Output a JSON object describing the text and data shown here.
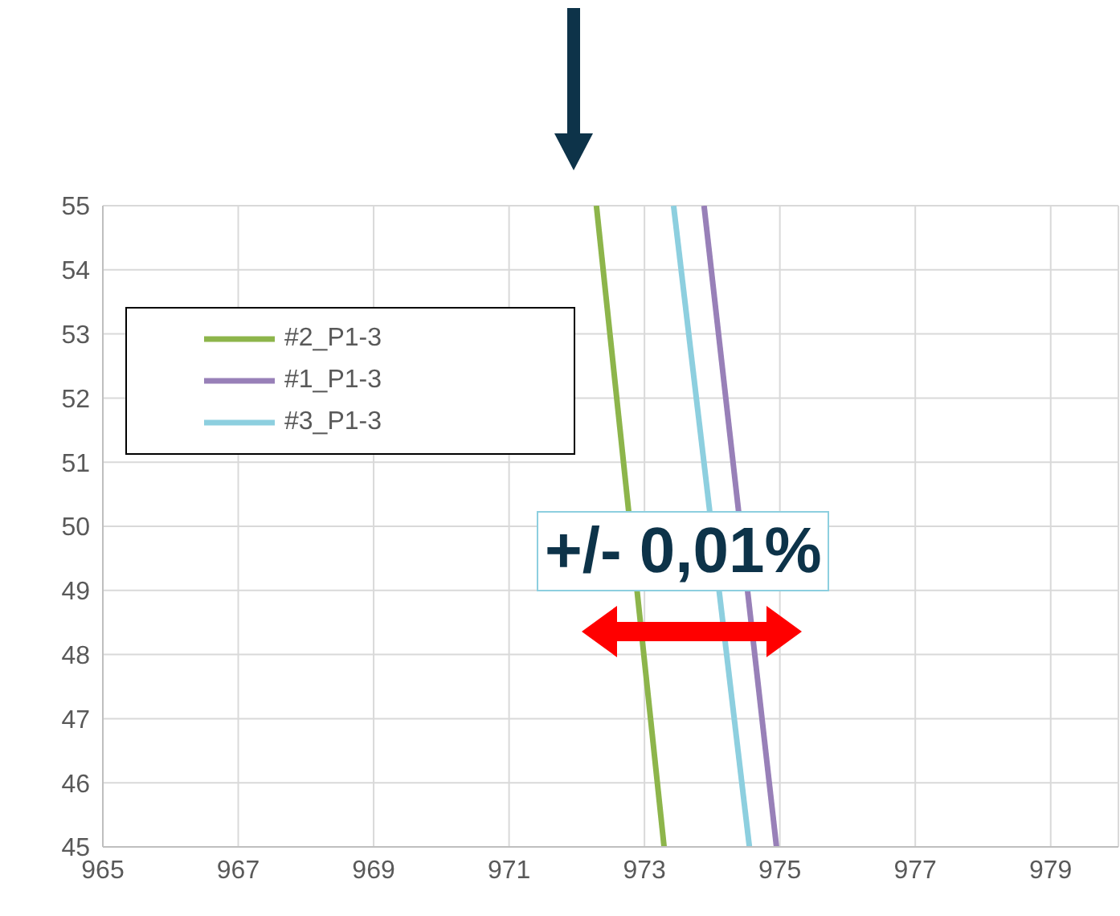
{
  "chart_data": {
    "type": "line",
    "annotations": [
      "+/- 0,01%"
    ],
    "series": [
      {
        "name": "#2_P1-3",
        "color": "#8db54b",
        "x": [
          972.29,
          973.29
        ],
        "values": [
          55,
          45
        ]
      },
      {
        "name": "#1_P1-3",
        "color": "#9880b8",
        "x": [
          973.88,
          974.95
        ],
        "values": [
          55,
          45
        ]
      },
      {
        "name": "#3_P1-3",
        "color": "#8dcfdf",
        "x": [
          973.43,
          974.55
        ],
        "values": [
          55,
          45
        ]
      }
    ],
    "xlim": [
      965,
      980
    ],
    "xticks": [
      965,
      967,
      969,
      971,
      973,
      975,
      977,
      979
    ],
    "ylim": [
      45,
      55
    ],
    "yticks": [
      45,
      46,
      47,
      48,
      49,
      50,
      51,
      52,
      53,
      54,
      55
    ],
    "grid": true,
    "legend": "top left",
    "marker": "none",
    "line_style": "solid"
  }
}
